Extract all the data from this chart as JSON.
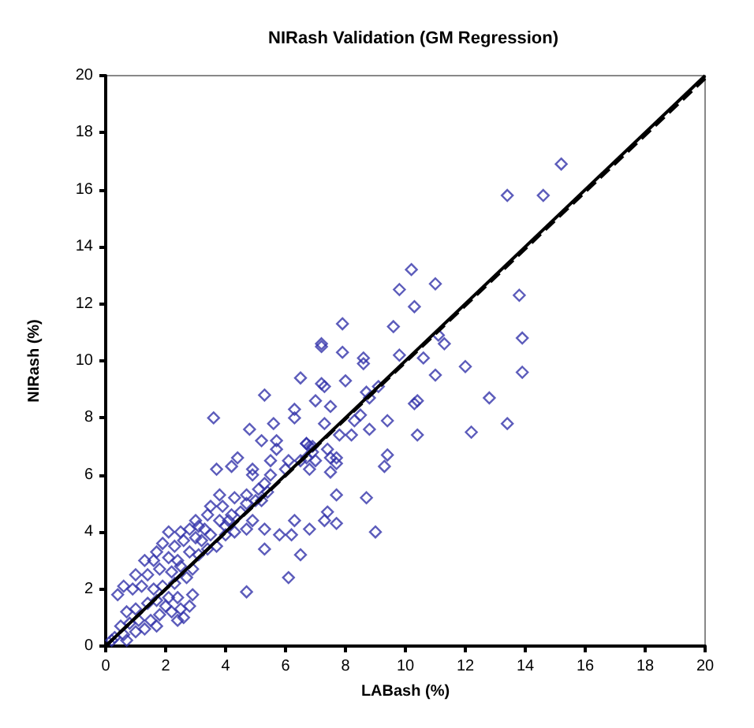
{
  "chart_data": {
    "type": "scatter",
    "title": "NIRash Validation (GM Regression)",
    "xlabel": "LABash (%)",
    "ylabel": "NIRash (%)",
    "xlim": [
      0,
      20
    ],
    "ylim": [
      0,
      20
    ],
    "xticks": [
      0,
      2,
      4,
      6,
      8,
      10,
      12,
      14,
      16,
      18,
      20
    ],
    "yticks": [
      0,
      2,
      4,
      6,
      8,
      10,
      12,
      14,
      16,
      18,
      20
    ],
    "marker": "diamond",
    "series": [
      {
        "color": "#3333aa",
        "x": [
          15.2,
          13.4,
          14.6,
          10.2,
          11.0,
          9.8,
          10.3,
          13.8,
          7.9,
          9.6,
          7.2,
          7.2,
          11.1,
          11.3,
          13.9,
          7.9,
          8.6,
          8.6,
          9.8,
          10.6,
          6.5,
          7.2,
          7.3,
          8.0,
          11.0,
          12.0,
          13.9,
          7.0,
          7.5,
          6.3,
          6.3,
          8.7,
          8.8,
          9.1,
          10.3,
          10.4,
          12.8,
          8.5,
          8.3,
          9.4,
          13.4,
          7.3,
          8.8,
          7.8,
          8.2,
          10.4,
          12.2,
          6.7,
          6.8,
          6.9,
          6.8,
          7.0,
          6.7,
          7.4,
          7.5,
          7.7,
          7.7,
          7.5,
          9.4,
          9.3,
          6.1,
          7.7,
          8.7,
          7.4,
          7.3,
          7.7,
          6.3,
          6.2,
          6.8,
          6.5,
          9.0,
          6.1,
          5.3,
          3.6,
          5.6,
          4.8,
          5.2,
          5.7,
          5.7,
          3.7,
          4.2,
          4.4,
          4.9,
          4.9,
          5.5,
          5.5,
          6.0,
          6.5,
          6.7,
          6.9,
          5.3,
          5.1,
          4.7,
          4.3,
          3.8,
          3.9,
          3.5,
          3.8,
          4.1,
          4.2,
          4.5,
          4.7,
          5.0,
          5.2,
          5.4,
          4.9,
          5.3,
          5.3,
          4.7,
          4.3,
          4.0,
          3.7,
          3.4,
          3.2,
          5.8,
          4.7,
          3.4,
          2.1,
          2.5,
          1.9,
          2.3,
          2.6,
          3.0,
          2.8,
          3.1,
          2.4,
          2.1,
          1.7,
          1.6,
          1.3,
          1.4,
          1.0,
          1.8,
          2.2,
          2.5,
          2.9,
          2.7,
          2.3,
          1.9,
          1.6,
          1.2,
          0.9,
          0.6,
          0.4,
          2.9,
          2.4,
          2.1,
          1.7,
          1.4,
          1.0,
          0.7,
          2.5,
          2.2,
          1.8,
          1.5,
          1.1,
          0.8,
          0.5,
          2.4,
          1.7,
          1.3,
          1.0,
          0.6,
          0.3,
          0.2,
          0.7,
          2.6,
          2.8,
          2.0,
          2.8,
          3.1,
          3.0,
          3.3,
          4.0,
          3.5
        ],
        "values": [
          16.9,
          15.8,
          15.8,
          13.2,
          12.7,
          12.5,
          11.9,
          12.3,
          11.3,
          11.2,
          10.6,
          10.5,
          10.9,
          10.6,
          10.8,
          10.3,
          10.1,
          9.9,
          10.2,
          10.1,
          9.4,
          9.2,
          9.1,
          9.3,
          9.5,
          9.8,
          9.6,
          8.6,
          8.4,
          8.3,
          8.0,
          8.9,
          8.7,
          9.1,
          8.5,
          8.6,
          8.7,
          8.1,
          7.9,
          7.9,
          7.8,
          7.8,
          7.6,
          7.4,
          7.4,
          7.4,
          7.5,
          7.1,
          7.0,
          6.8,
          6.2,
          6.5,
          6.6,
          6.9,
          6.6,
          6.6,
          6.4,
          6.1,
          6.7,
          6.3,
          6.5,
          5.3,
          5.2,
          4.7,
          4.4,
          4.3,
          4.4,
          3.9,
          4.1,
          3.2,
          4.0,
          2.4,
          8.8,
          8.0,
          7.8,
          7.6,
          7.2,
          7.2,
          6.9,
          6.2,
          6.3,
          6.6,
          6.2,
          6.0,
          6.5,
          6.0,
          6.2,
          6.5,
          7.1,
          7.0,
          5.7,
          5.5,
          5.3,
          5.2,
          5.3,
          4.9,
          4.9,
          4.4,
          4.4,
          4.6,
          4.7,
          5.0,
          5.1,
          5.1,
          5.4,
          4.4,
          4.1,
          3.4,
          4.1,
          4.0,
          3.9,
          3.5,
          3.4,
          3.7,
          3.9,
          1.9,
          4.6,
          4.0,
          4.0,
          3.6,
          3.5,
          3.7,
          3.8,
          3.3,
          3.2,
          3.0,
          3.1,
          3.3,
          3.0,
          3.0,
          2.5,
          2.5,
          2.7,
          2.6,
          2.8,
          2.7,
          2.4,
          2.2,
          2.1,
          2.0,
          2.1,
          2.0,
          2.1,
          1.8,
          1.8,
          1.7,
          1.7,
          1.6,
          1.5,
          1.3,
          1.2,
          1.3,
          1.2,
          1.1,
          0.9,
          0.9,
          0.8,
          0.7,
          0.9,
          0.7,
          0.6,
          0.5,
          0.4,
          0.3,
          0.2,
          0.2,
          1.0,
          1.4,
          1.4,
          4.1,
          4.2,
          4.4,
          4.1,
          4.2,
          3.9
        ]
      },
      {
        "type": "line",
        "color": "#000000",
        "line_style": "solid",
        "marker": "none",
        "x": [
          0,
          20
        ],
        "values": [
          0,
          20
        ]
      },
      {
        "type": "line",
        "color": "#000000",
        "line_style": "dashed",
        "marker": "none",
        "x": [
          0,
          20
        ],
        "values": [
          0,
          19.9
        ]
      }
    ]
  }
}
